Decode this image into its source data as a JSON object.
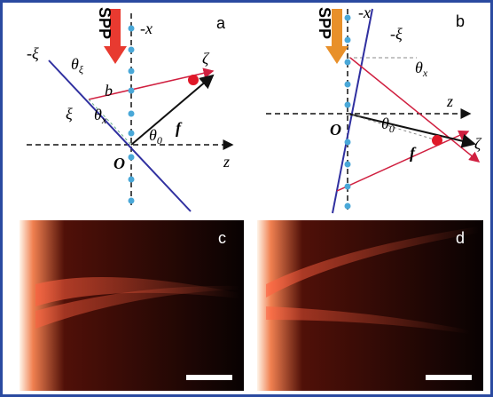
{
  "panel_a": {
    "label": "a",
    "spp": "SPP",
    "neg_x": "-x",
    "zeta": "ζ",
    "xi": "ξ",
    "neg_xi": "-ξ",
    "b": "b",
    "origin": "O",
    "z": "z",
    "f": "f",
    "theta": "θ",
    "subs": [
      "ξ",
      "x",
      "0"
    ]
  },
  "panel_b": {
    "label": "b",
    "spp": "SPP",
    "neg_x": "-x",
    "zeta": "ζ",
    "neg_xi": "-ξ",
    "origin": "O",
    "z": "z",
    "f": "f",
    "theta": "θ",
    "subs": [
      "x",
      "0"
    ]
  },
  "images": [
    {
      "label": "c"
    },
    {
      "label": "d"
    }
  ]
}
